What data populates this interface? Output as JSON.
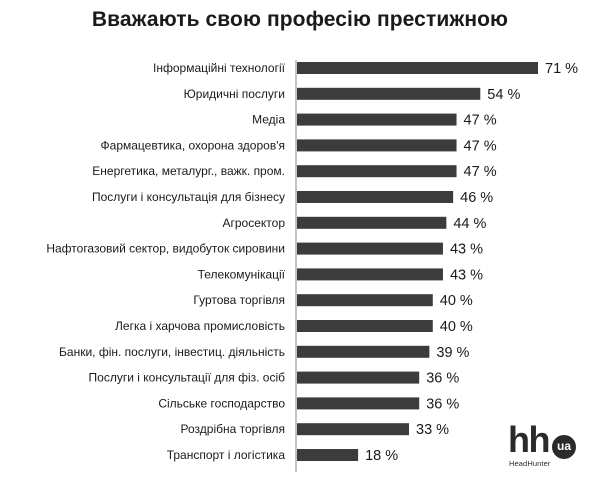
{
  "chart_data": {
    "type": "bar",
    "orientation": "horizontal",
    "title": "Вважають свою професію престижною",
    "categories": [
      "Інформаційні технології",
      "Юридичні послуги",
      "Медіа",
      "Фармацевтика, охорона здоров'я",
      "Енергетика, металург., важк. пром.",
      "Послуги і консультація для бізнесу",
      "Агросектор",
      "Нафтогазовий сектор, видобуток сировини",
      "Телекомунікації",
      "Гуртова торгівля",
      "Легка і харчова промисловість",
      "Банки, фін. послуги, інвестиц. діяльність",
      "Послуги і консультації для фіз. осіб",
      "Сільське господарство",
      "Роздрібна торгівля",
      "Транспорт і логістика"
    ],
    "values": [
      71,
      54,
      47,
      47,
      47,
      46,
      44,
      43,
      43,
      40,
      40,
      39,
      36,
      36,
      33,
      18
    ],
    "value_labels": [
      "71 %",
      "54 %",
      "47 %",
      "47 %",
      "47 %",
      "46 %",
      "44 %",
      "43 %",
      "43 %",
      "40 %",
      "40 %",
      "39 %",
      "36 %",
      "36 %",
      "33 %",
      "18 %"
    ],
    "value_unit": "%",
    "xlim": [
      0,
      71
    ],
    "grid": false,
    "legend": "none",
    "bar_color": "#3c3c3c"
  },
  "logo": {
    "text": "hh",
    "badge": "ua",
    "subtext": "HeadHunter"
  }
}
